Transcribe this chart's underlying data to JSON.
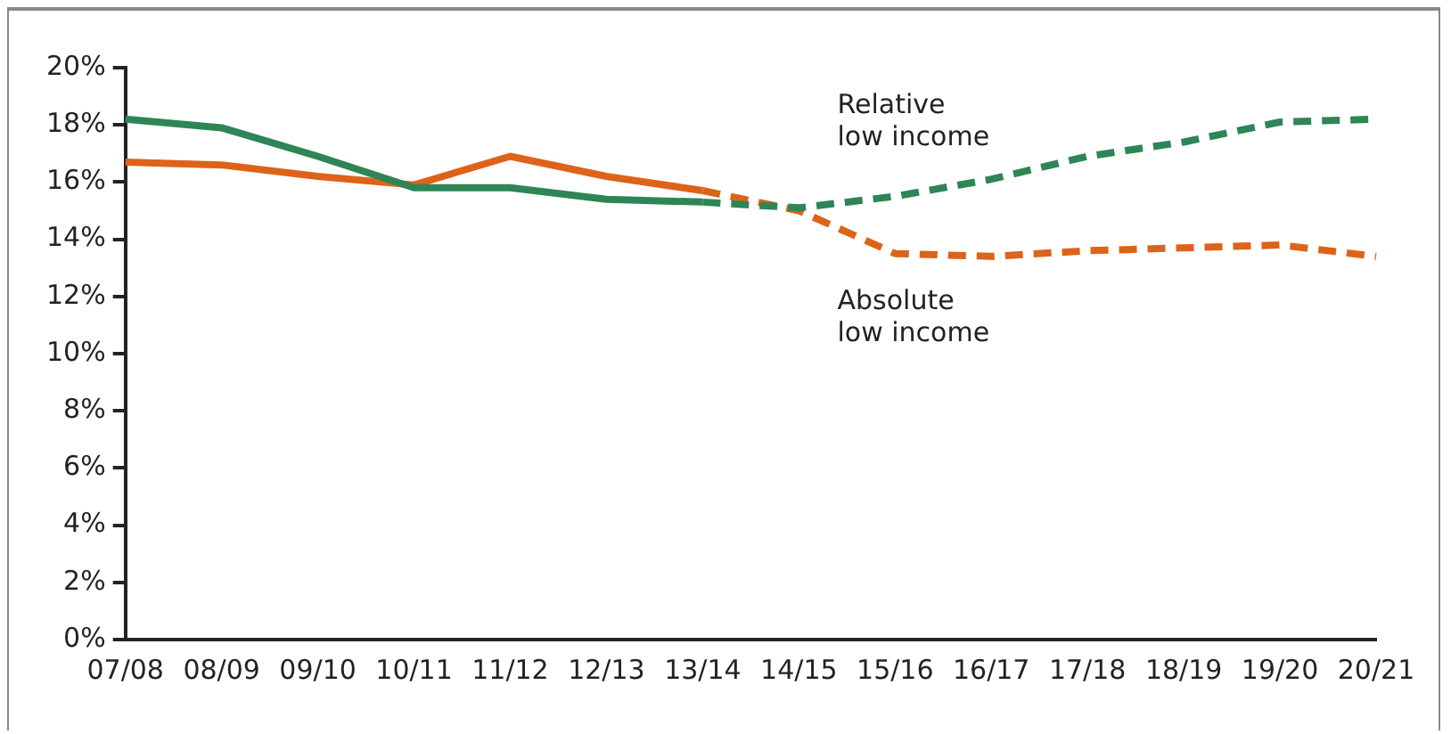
{
  "chart_data": {
    "type": "line",
    "categories": [
      "07/08",
      "08/09",
      "09/10",
      "10/11",
      "11/12",
      "12/13",
      "13/14",
      "14/15",
      "15/16",
      "16/17",
      "17/18",
      "18/19",
      "19/20",
      "20/21"
    ],
    "series": [
      {
        "color": "#2e8555",
        "line_style": "solid",
        "values": [
          18.2,
          17.9,
          16.9,
          15.8,
          15.8,
          15.4,
          15.3,
          null,
          null,
          null,
          null,
          null,
          null,
          null
        ]
      },
      {
        "name": "Relative low income",
        "color": "#2e8555",
        "line_style": "dashed",
        "values": [
          null,
          null,
          null,
          null,
          null,
          null,
          15.3,
          15.1,
          15.5,
          16.1,
          16.9,
          17.4,
          18.1,
          18.2
        ]
      },
      {
        "color": "#dd6318",
        "line_style": "solid",
        "values": [
          16.7,
          16.6,
          16.2,
          15.9,
          16.9,
          16.2,
          15.7,
          null,
          null,
          null,
          null,
          null,
          null,
          null
        ]
      },
      {
        "name": "Absolute low income",
        "color": "#dd6318",
        "line_style": "dashed",
        "values": [
          null,
          null,
          null,
          null,
          null,
          null,
          15.7,
          15.0,
          13.5,
          13.4,
          13.6,
          13.7,
          13.8,
          13.4
        ]
      }
    ],
    "ylim": [
      0,
      20
    ],
    "yticks": [
      {
        "value": 0,
        "label": "0%"
      },
      {
        "value": 2,
        "label": "2%"
      },
      {
        "value": 4,
        "label": "4%"
      },
      {
        "value": 6,
        "label": "6%"
      },
      {
        "value": 8,
        "label": "8%"
      },
      {
        "value": 10,
        "label": "10%"
      },
      {
        "value": 12,
        "label": "12%"
      },
      {
        "value": 14,
        "label": "14%"
      },
      {
        "value": 16,
        "label": "16%"
      },
      {
        "value": 18,
        "label": "18%"
      },
      {
        "value": 20,
        "label": "20%"
      }
    ],
    "grid": false,
    "legend": false,
    "marker": "none"
  }
}
